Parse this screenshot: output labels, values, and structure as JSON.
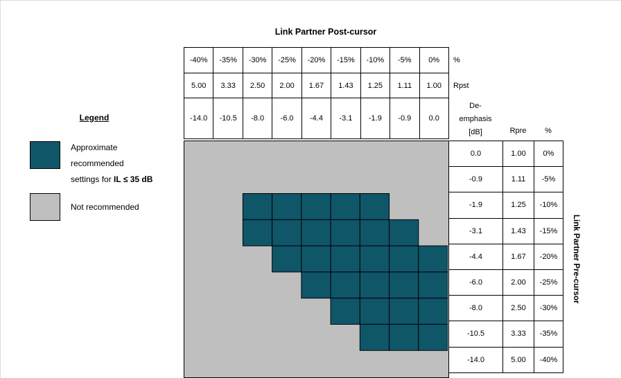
{
  "title": "Link Partner Post-cursor",
  "side_label": "Link Partner Pre-cursor",
  "colors": {
    "recommended": "#0f5669",
    "not_recommended": "#bfbfbf",
    "grid_border": "#000000",
    "edge_line": "#dcdcdc"
  },
  "legend": {
    "heading": "Legend",
    "recommended": {
      "line1": "Approximate",
      "line2": "recommended",
      "line3_prefix": "settings for ",
      "line3_bold": "IL ≤ 35 dB"
    },
    "not_recommended": "Not recommended"
  },
  "top_table": {
    "row_labels": [
      "%",
      "Rpst"
    ],
    "rows": [
      [
        "-40%",
        "-35%",
        "-30%",
        "-25%",
        "-20%",
        "-15%",
        "-10%",
        "-5%",
        "0%"
      ],
      [
        "5.00",
        "3.33",
        "2.50",
        "2.00",
        "1.67",
        "1.43",
        "1.25",
        "1.11",
        "1.00"
      ],
      [
        "-14.0",
        "-10.5",
        "-8.0",
        "-6.0",
        "-4.4",
        "-3.1",
        "-1.9",
        "-0.9",
        "0.0"
      ]
    ]
  },
  "right_header": {
    "de_emphasis": [
      "De-",
      "emphasis",
      "[dB]"
    ],
    "rpre": "Rpre",
    "pct": "%"
  },
  "right_table": {
    "rows": [
      [
        "0.0",
        "1.00",
        "0%"
      ],
      [
        "-0.9",
        "1.11",
        "-5%"
      ],
      [
        "-1.9",
        "1.25",
        "-10%"
      ],
      [
        "-3.1",
        "1.43",
        "-15%"
      ],
      [
        "-4.4",
        "1.67",
        "-20%"
      ],
      [
        "-6.0",
        "2.00",
        "-25%"
      ],
      [
        "-8.0",
        "2.50",
        "-30%"
      ],
      [
        "-10.5",
        "3.33",
        "-35%"
      ],
      [
        "-14.0",
        "5.00",
        "-40%"
      ]
    ]
  },
  "chart_data": {
    "type": "heatmap",
    "title": "Link Partner Post-cursor",
    "x_axis": {
      "label": "Link Partner Post-cursor",
      "pct": [
        -40,
        -35,
        -30,
        -25,
        -20,
        -15,
        -10,
        -5,
        0
      ],
      "rpst": [
        5.0,
        3.33,
        2.5,
        2.0,
        1.67,
        1.43,
        1.25,
        1.11,
        1.0
      ],
      "de_emphasis_db": [
        -14.0,
        -10.5,
        -8.0,
        -6.0,
        -4.4,
        -3.1,
        -1.9,
        -0.9,
        0.0
      ]
    },
    "y_axis": {
      "label": "Link Partner Pre-cursor",
      "de_emphasis_db": [
        0.0,
        -0.9,
        -1.9,
        -3.1,
        -4.4,
        -6.0,
        -8.0,
        -10.5,
        -14.0
      ],
      "rpre": [
        1.0,
        1.11,
        1.25,
        1.43,
        1.67,
        2.0,
        2.5,
        3.33,
        5.0
      ],
      "pct": [
        0,
        -5,
        -10,
        -15,
        -20,
        -25,
        -30,
        -35,
        -40
      ]
    },
    "matrix": [
      "000000000",
      "000000000",
      "001111100",
      "001111110",
      "000111111",
      "000011111",
      "000001111",
      "000000111",
      "000000000"
    ],
    "legend_entries": {
      "1": "Approximate recommended settings for IL ≤ 35 dB",
      "0": "Not recommended"
    },
    "grid": "off",
    "legend_position": "left"
  }
}
